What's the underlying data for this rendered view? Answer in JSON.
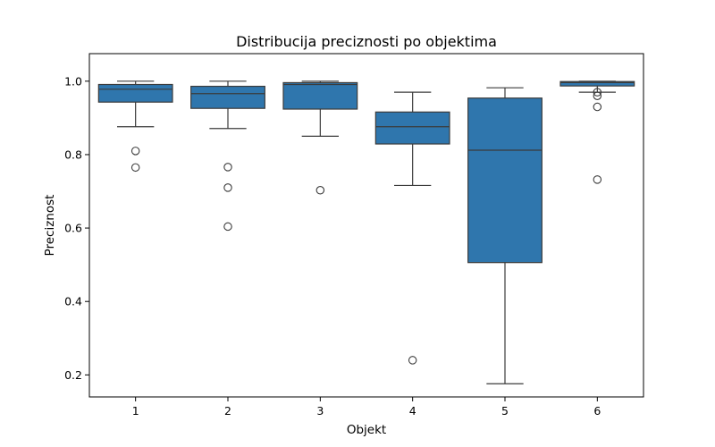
{
  "chart_data": {
    "type": "box",
    "title": "Distribucija preciznosti po objektima",
    "xlabel": "Objekt",
    "ylabel": "Preciznost",
    "categories": [
      "1",
      "2",
      "3",
      "4",
      "5",
      "6"
    ],
    "yticks": [
      "0.2",
      "0.4",
      "0.6",
      "0.8",
      "1.0"
    ],
    "ylim": [
      0.14,
      1.075
    ],
    "grid": false,
    "legend": "none",
    "box_color": "#2f76ad",
    "edge_color": "#3b3b3b",
    "boxes": [
      {
        "category": "1",
        "whisker_low": 0.876,
        "q1": 0.943,
        "median": 0.978,
        "q3": 0.991,
        "whisker_high": 1.0,
        "outliers": [
          0.81,
          0.765
        ]
      },
      {
        "category": "2",
        "whisker_low": 0.871,
        "q1": 0.926,
        "median": 0.966,
        "q3": 0.986,
        "whisker_high": 1.0,
        "outliers": [
          0.766,
          0.71,
          0.604
        ]
      },
      {
        "category": "3",
        "whisker_low": 0.85,
        "q1": 0.924,
        "median": 0.991,
        "q3": 0.996,
        "whisker_high": 1.0,
        "outliers": [
          0.703
        ]
      },
      {
        "category": "4",
        "whisker_low": 0.716,
        "q1": 0.829,
        "median": 0.876,
        "q3": 0.916,
        "whisker_high": 0.97,
        "outliers": [
          0.24
        ]
      },
      {
        "category": "5",
        "whisker_low": 0.176,
        "q1": 0.506,
        "median": 0.812,
        "q3": 0.954,
        "whisker_high": 0.982,
        "outliers": []
      },
      {
        "category": "6",
        "whisker_low": 0.97,
        "q1": 0.987,
        "median": 0.996,
        "q3": 0.999,
        "whisker_high": 1.0,
        "outliers": [
          0.97,
          0.96,
          0.93,
          0.732
        ]
      }
    ]
  }
}
